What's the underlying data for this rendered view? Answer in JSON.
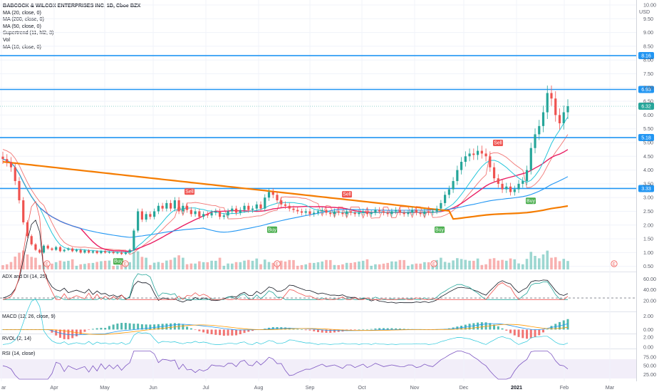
{
  "header": {
    "title": "BABCOCK & WILCOX ENTERPRISES INC, 1D, Cboe BZX",
    "studies": [
      "MA (20, close, 0)",
      "MA (200, close, 0)",
      "MA (50, close, 0)",
      "Supertrend (11, hl2, 3)",
      "Vol",
      "MA (10, close, 0)"
    ],
    "currency": "USD"
  },
  "panes": {
    "adx_label": "ADX and DI (14, 25)",
    "macd_label": "MACD (12, 26, close, 9)",
    "rvol_label": "RVOL (2, 14)",
    "rsi_label": "RSI (14, close)"
  },
  "colors": {
    "level_line": "#2196f3",
    "up": "#26a69a",
    "down": "#ef5350",
    "ma20": "#e91e63",
    "ma50": "#2196f3",
    "ma10": "#26c6da",
    "ma200": "#f57c00",
    "supertrend_up": "#4caf50",
    "supertrend_down": "#ef5350",
    "rsi": "#7e57c2"
  },
  "chart_data": [
    {
      "type": "candlestick",
      "title": "BABCOCK & WILCOX ENTERPRISES INC, 1D, Cboe BZX",
      "x_ticks": [
        "ar",
        "Apr",
        "May",
        "Jun",
        "Jul",
        "Aug",
        "Sep",
        "Oct",
        "Nov",
        "Dec",
        "2021",
        "Feb",
        "Mar"
      ],
      "y_ticks": [
        10.0,
        9.5,
        9.0,
        8.5,
        8.0,
        7.5,
        7.0,
        6.5,
        6.0,
        5.5,
        5.0,
        4.5,
        4.0,
        3.5,
        3.0,
        2.5,
        2.0,
        1.5,
        1.0,
        0.5
      ],
      "ylim": [
        0.4,
        10.0
      ],
      "horizontal_levels": [
        8.16,
        6.93,
        5.18,
        3.33
      ],
      "last_price": 6.32,
      "signals": [
        {
          "label": "Buy",
          "x": "May",
          "price": 0.85
        },
        {
          "label": "Sell",
          "x": "Jun",
          "price": 3.05
        },
        {
          "label": "Buy",
          "x": "Aug",
          "price": 2.0
        },
        {
          "label": "Sell",
          "x": "Sep",
          "price": 2.95
        },
        {
          "label": "Buy",
          "x": "Nov",
          "price": 2.0
        },
        {
          "label": "Sell",
          "x": "Dec",
          "price": 4.82
        },
        {
          "label": "Buy",
          "x": "2021",
          "price": 3.05
        }
      ],
      "event_markers": [
        "E",
        "E",
        "E",
        "E",
        "E",
        "E",
        "E",
        "E"
      ],
      "candle_closes": [
        4.4,
        4.3,
        4.1,
        3.6,
        2.9,
        2.1,
        1.6,
        1.3,
        1.1,
        1.0,
        1.25,
        1.15,
        1.1,
        1.2,
        1.05,
        1.1,
        1.15,
        1.05,
        1.1,
        1.0,
        1.08,
        1.0,
        1.05,
        0.98,
        1.05,
        1.0,
        1.02,
        0.98,
        1.0,
        0.95,
        1.0,
        1.1,
        1.8,
        2.5,
        2.2,
        2.4,
        2.3,
        2.5,
        2.7,
        2.6,
        2.8,
        2.6,
        2.9,
        2.5,
        2.7,
        2.55,
        2.4,
        2.5,
        2.3,
        2.4,
        2.35,
        2.45,
        2.5,
        2.3,
        2.35,
        2.5,
        2.6,
        2.45,
        2.55,
        2.7,
        2.55,
        2.6,
        2.75,
        2.6,
        3.0,
        3.2,
        3.1,
        2.9,
        2.75,
        2.7,
        2.6,
        2.55,
        2.5,
        2.45,
        2.5,
        2.4,
        2.45,
        2.5,
        2.55,
        2.45,
        2.4,
        2.5,
        2.45,
        2.4,
        2.5,
        2.45,
        2.4,
        2.45,
        2.5,
        2.4,
        2.45,
        2.55,
        2.5,
        2.45,
        2.4,
        2.5,
        2.55,
        2.45,
        2.4,
        2.45,
        2.55,
        2.45,
        2.4,
        2.5,
        2.45,
        2.5,
        2.6,
        2.8,
        3.1,
        3.3,
        3.6,
        4.0,
        4.3,
        4.5,
        4.6,
        4.55,
        4.7,
        4.6,
        4.5,
        4.1,
        3.7,
        3.5,
        3.3,
        3.4,
        3.2,
        3.3,
        3.5,
        3.6,
        4.0,
        4.8,
        5.3,
        5.6,
        6.1,
        6.8,
        6.6,
        6.0,
        5.7,
        6.1,
        6.32
      ],
      "indicators": {
        "adx_levels": [
          60.0,
          40.0,
          20.0
        ],
        "adx_threshold": 25,
        "macd_levels": [
          2.0,
          0.0
        ],
        "rvol_levels": [
          2.0,
          0.0
        ],
        "rsi_levels": [
          75.0,
          50.0,
          25.0
        ]
      }
    }
  ]
}
